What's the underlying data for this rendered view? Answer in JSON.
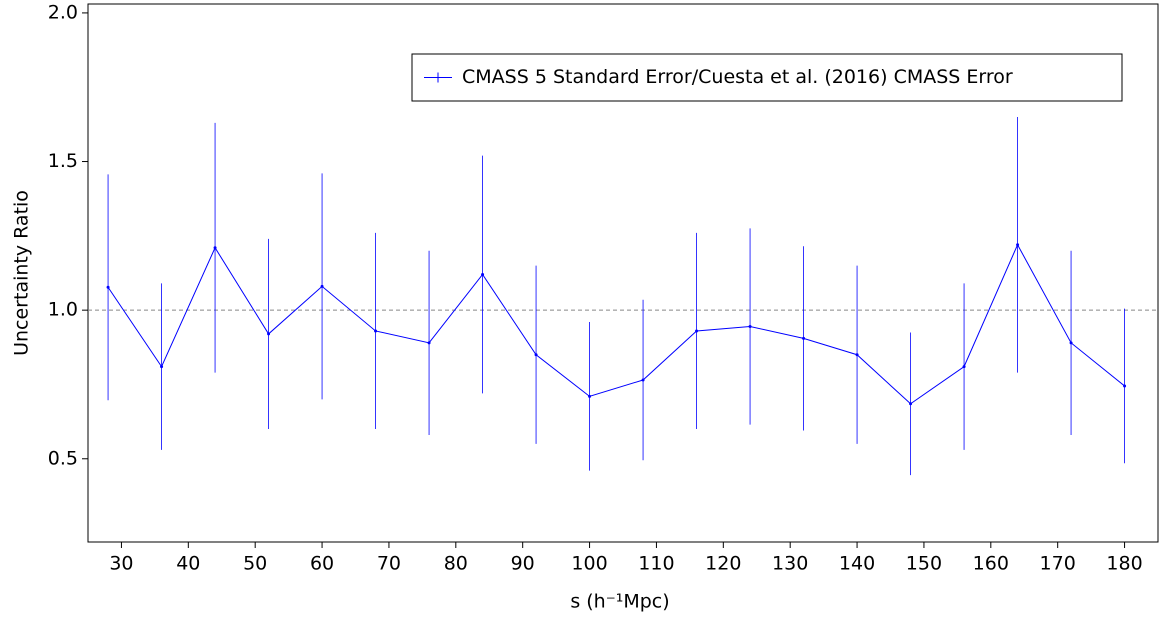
{
  "chart_data": {
    "type": "errorbar",
    "xlabel": "s (h⁻¹Mpc)",
    "ylabel": "Uncertainty Ratio",
    "x": [
      28,
      36,
      44,
      52,
      60,
      68,
      76,
      84,
      92,
      100,
      108,
      116,
      124,
      132,
      140,
      148,
      156,
      164,
      172,
      180
    ],
    "series": [
      {
        "name": "CMASS 5 Standard Error/Cuesta et al. (2016) CMASS Error",
        "color": "#0000ff",
        "values": [
          1.077,
          0.81,
          1.21,
          0.92,
          1.08,
          0.93,
          0.89,
          1.12,
          0.85,
          0.71,
          0.765,
          0.93,
          0.945,
          0.905,
          0.85,
          0.685,
          0.81,
          1.22,
          0.89,
          0.745
        ],
        "errors": [
          0.38,
          0.28,
          0.42,
          0.32,
          0.38,
          0.33,
          0.31,
          0.4,
          0.3,
          0.25,
          0.27,
          0.33,
          0.33,
          0.31,
          0.3,
          0.24,
          0.28,
          0.43,
          0.31,
          0.26
        ]
      }
    ],
    "xlim": [
      25,
      185
    ],
    "ylim": [
      0.22,
      2.03
    ],
    "xticks": [
      30,
      40,
      50,
      60,
      70,
      80,
      90,
      100,
      110,
      120,
      130,
      140,
      150,
      160,
      170,
      180
    ],
    "yticks": [
      {
        "value": 0.5,
        "label": "0.5"
      },
      {
        "value": 1,
        "label": "1.0"
      },
      {
        "value": 1.5,
        "label": "1.5"
      },
      {
        "value": 2,
        "label": "2.0"
      }
    ],
    "reference_line": 1,
    "reference_color": "#888888",
    "legend": "upper right"
  }
}
